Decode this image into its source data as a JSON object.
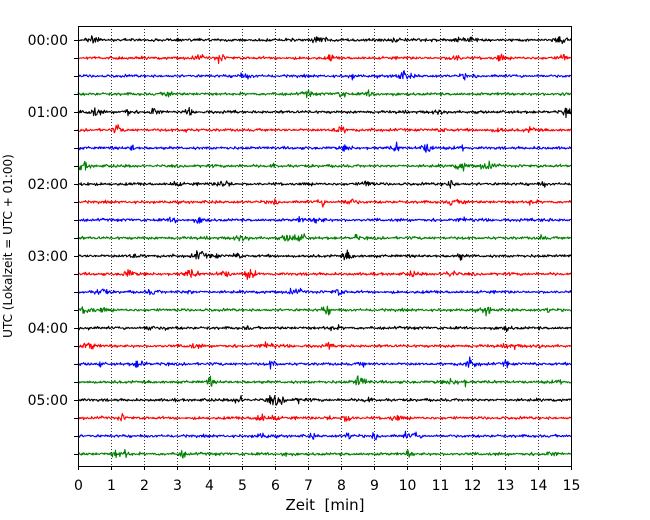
{
  "chart_data": {
    "type": "line",
    "title": "",
    "xlabel": "Zeit  [min]",
    "ylabel": "UTC (Lokalzeit = UTC + 01:00)",
    "xlim": [
      0,
      15
    ],
    "xticks": [
      "0",
      "1",
      "2",
      "3",
      "4",
      "5",
      "6",
      "7",
      "8",
      "9",
      "10",
      "11",
      "12",
      "13",
      "14",
      "15"
    ],
    "grid": "vertical dotted at each minute",
    "trace_interval_minutes": 15,
    "trace_count": 24,
    "trace_colors": [
      "#000000",
      "#ff0000",
      "#0000ff",
      "#008000"
    ],
    "yticks": [
      "00:00",
      "01:00",
      "02:00",
      "03:00",
      "04:00",
      "05:00"
    ],
    "traces": [
      {
        "utc": "00:00",
        "color": "#000000"
      },
      {
        "utc": "00:15",
        "color": "#ff0000"
      },
      {
        "utc": "00:30",
        "color": "#0000ff"
      },
      {
        "utc": "00:45",
        "color": "#008000"
      },
      {
        "utc": "01:00",
        "color": "#000000"
      },
      {
        "utc": "01:15",
        "color": "#ff0000"
      },
      {
        "utc": "01:30",
        "color": "#0000ff"
      },
      {
        "utc": "01:45",
        "color": "#008000"
      },
      {
        "utc": "02:00",
        "color": "#000000"
      },
      {
        "utc": "02:15",
        "color": "#ff0000"
      },
      {
        "utc": "02:30",
        "color": "#0000ff"
      },
      {
        "utc": "02:45",
        "color": "#008000"
      },
      {
        "utc": "03:00",
        "color": "#000000"
      },
      {
        "utc": "03:15",
        "color": "#ff0000"
      },
      {
        "utc": "03:30",
        "color": "#0000ff"
      },
      {
        "utc": "03:45",
        "color": "#008000"
      },
      {
        "utc": "04:00",
        "color": "#000000"
      },
      {
        "utc": "04:15",
        "color": "#ff0000"
      },
      {
        "utc": "04:30",
        "color": "#0000ff"
      },
      {
        "utc": "04:45",
        "color": "#008000"
      },
      {
        "utc": "05:00",
        "color": "#000000"
      },
      {
        "utc": "05:15",
        "color": "#ff0000"
      },
      {
        "utc": "05:30",
        "color": "#0000ff"
      },
      {
        "utc": "05:45",
        "color": "#008000"
      }
    ]
  }
}
